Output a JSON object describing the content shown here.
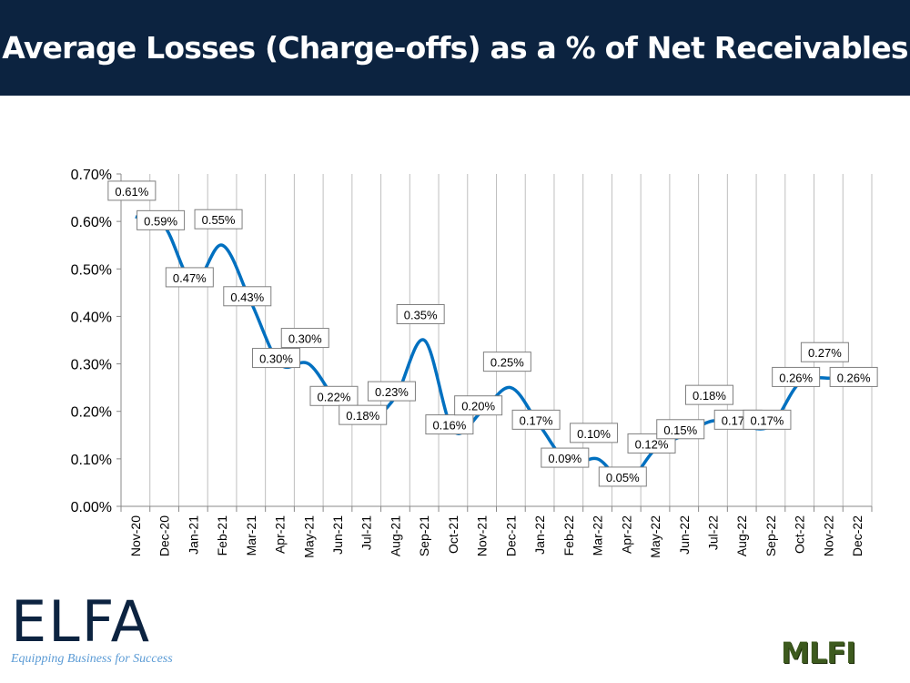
{
  "header": {
    "title": "Average Losses (Charge-offs) as a % of Net Receivables",
    "background": "#0c2340"
  },
  "chart_data": {
    "type": "line",
    "title": "",
    "xlabel": "",
    "ylabel": "",
    "categories": [
      "Nov-20",
      "Dec-20",
      "Jan-21",
      "Feb-21",
      "Mar-21",
      "Apr-21",
      "May-21",
      "Jun-21",
      "Jul-21",
      "Aug-21",
      "Sep-21",
      "Oct-21",
      "Nov-21",
      "Dec-21",
      "Jan-22",
      "Feb-22",
      "Mar-22",
      "Apr-22",
      "May-22",
      "Jun-22",
      "Jul-22",
      "Aug-22",
      "Sep-22",
      "Oct-22",
      "Nov-22",
      "Dec-22"
    ],
    "values": [
      0.61,
      0.59,
      0.47,
      0.55,
      0.43,
      0.3,
      0.3,
      0.22,
      0.18,
      0.23,
      0.35,
      0.16,
      0.2,
      0.25,
      0.17,
      0.09,
      0.1,
      0.05,
      0.12,
      0.15,
      0.18,
      0.17,
      0.17,
      0.26,
      0.27,
      0.26
    ],
    "ylim": [
      0,
      0.7
    ],
    "yticks": [
      "0.00%",
      "0.10%",
      "0.20%",
      "0.30%",
      "0.40%",
      "0.50%",
      "0.60%",
      "0.70%"
    ],
    "grid": "vertical",
    "smooth": true,
    "line_color": "#0070c0",
    "data_label_suffix": "%"
  },
  "logos": {
    "elfa": "ELFA",
    "elfa_tagline": "Equipping Business for Success",
    "mlfi": "MLFI"
  }
}
